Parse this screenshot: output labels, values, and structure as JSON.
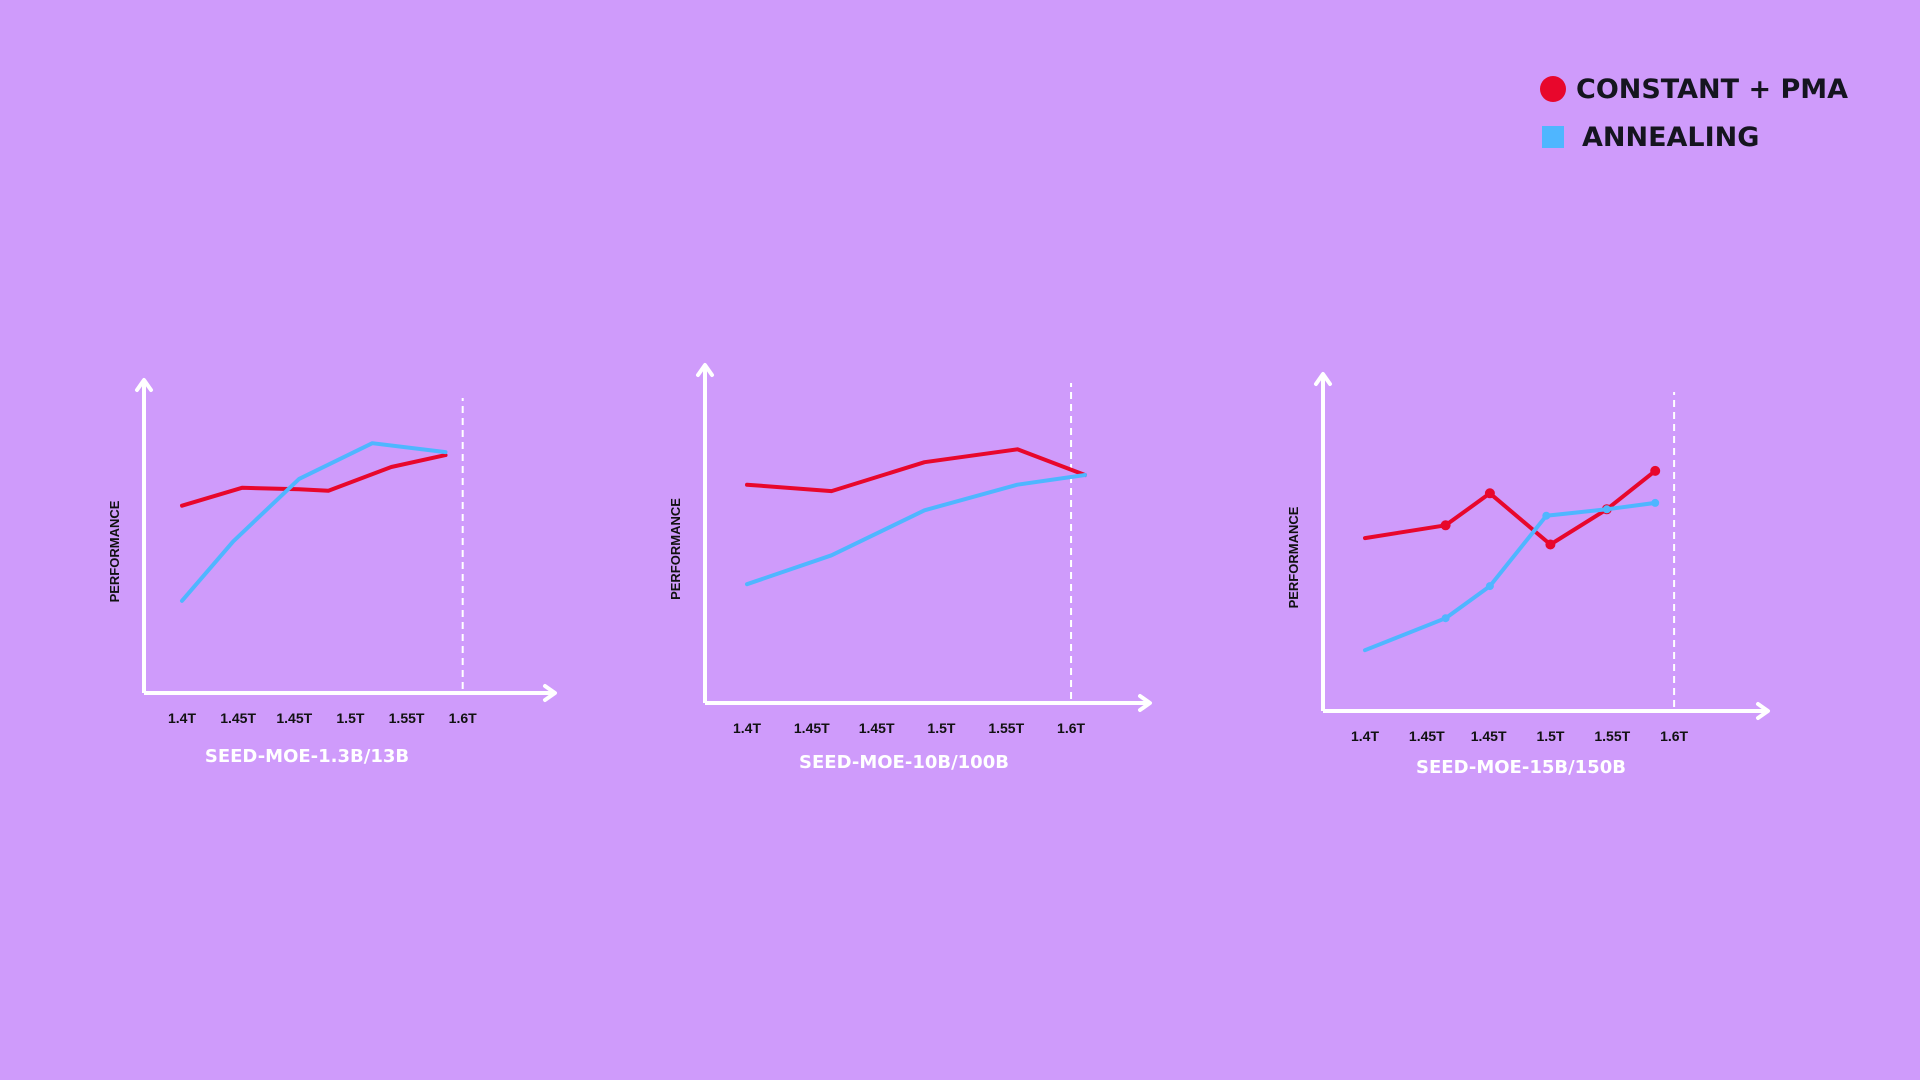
{
  "colors": {
    "background": "#cf9bfb",
    "constant_pma": "#e8072c",
    "annealing": "#4fb6ff",
    "axis": "#ffffff"
  },
  "legend": {
    "items": [
      {
        "label": "CONSTANT + PMA",
        "shape": "circle",
        "color": "#e8072c"
      },
      {
        "label": "ANNEALING",
        "shape": "square",
        "color": "#4fb6ff"
      }
    ]
  },
  "chart_data": [
    {
      "type": "line",
      "title": "SEED-MOE-1.3B/13B",
      "xlabel": "",
      "ylabel": "PERFORMANCE",
      "categories": [
        "1.4T",
        "1.45T",
        "1.45T",
        "1.5T",
        "1.55T",
        "1.6T"
      ],
      "ylim": [
        0,
        100
      ],
      "grid": false,
      "series": [
        {
          "name": "CONSTANT + PMA",
          "x": [
            0.0,
            0.82,
            1.6,
            2.0,
            2.86,
            3.6
          ],
          "y": [
            63,
            69,
            68.5,
            68,
            76,
            80
          ],
          "markers": false
        },
        {
          "name": "ANNEALING",
          "x": [
            0.0,
            0.7,
            1.6,
            2.6,
            3.6
          ],
          "y": [
            31,
            51,
            72,
            84,
            81
          ],
          "markers": false
        }
      ],
      "vline_at": "1.6T"
    },
    {
      "type": "line",
      "title": "SEED-MOE-10B/100B",
      "xlabel": "",
      "ylabel": "PERFORMANCE",
      "categories": [
        "1.4T",
        "1.45T",
        "1.45T",
        "1.5T",
        "1.55T",
        "1.6T"
      ],
      "ylim": [
        0,
        100
      ],
      "grid": false,
      "series": [
        {
          "name": "CONSTANT + PMA",
          "x": [
            0.0,
            1.0,
            2.1,
            3.2,
            4.0
          ],
          "y": [
            68,
            66,
            75,
            79,
            71
          ],
          "markers": false
        },
        {
          "name": "ANNEALING",
          "x": [
            0.0,
            1.0,
            2.1,
            3.2,
            4.0
          ],
          "y": [
            37,
            46,
            60,
            68,
            71
          ],
          "markers": false
        }
      ],
      "vline_at": "1.6T"
    },
    {
      "type": "line",
      "title": "SEED-MOE-15B/150B",
      "xlabel": "",
      "ylabel": "PERFORMANCE",
      "categories": [
        "1.4T",
        "1.45T",
        "1.45T",
        "1.5T",
        "1.55T",
        "1.6T"
      ],
      "ylim": [
        0,
        100
      ],
      "grid": false,
      "series": [
        {
          "name": "CONSTANT + PMA",
          "x": [
            0.0,
            1.0,
            1.55,
            2.3,
            3.0,
            3.6
          ],
          "y": [
            54,
            58,
            68,
            52,
            63,
            75
          ],
          "markers": true
        },
        {
          "name": "ANNEALING",
          "x": [
            0.0,
            1.0,
            1.55,
            2.25,
            3.0,
            3.6
          ],
          "y": [
            19,
            29,
            39,
            61,
            63,
            65
          ],
          "markers": true
        }
      ],
      "vline_at": "1.6T"
    }
  ]
}
